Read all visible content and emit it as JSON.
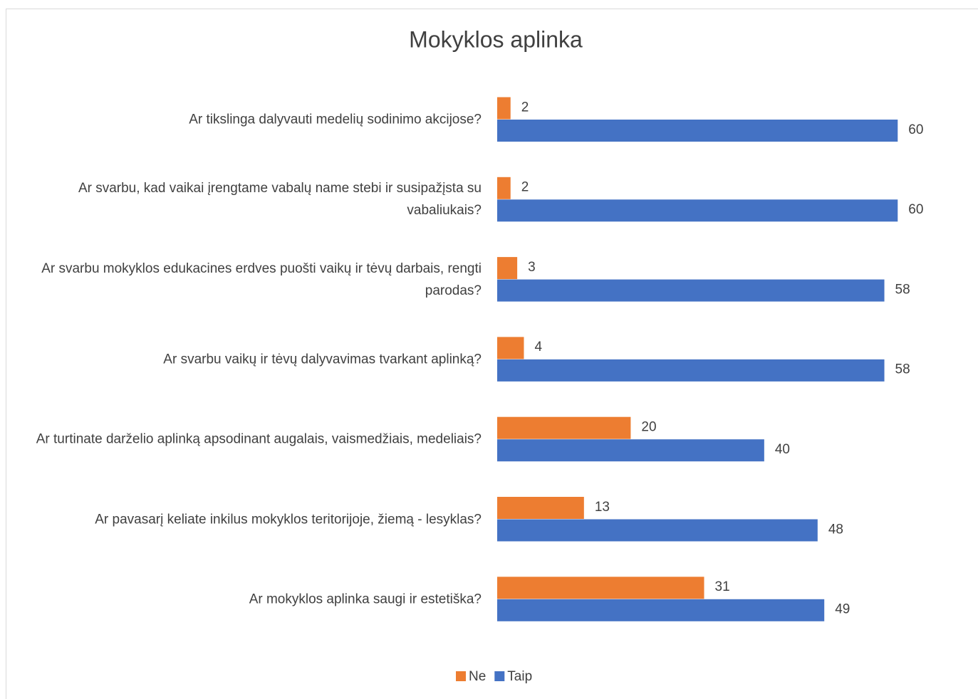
{
  "chart_data": {
    "type": "bar",
    "orientation": "horizontal",
    "title": "Mokyklos aplinka",
    "categories": [
      "Ar tikslinga dalyvauti medelių sodinimo akcijose?",
      "Ar svarbu, kad vaikai įrengtame vabalų name stebi ir susipažįsta su vabaliukais?",
      "Ar svarbu mokyklos edukacines erdves puošti vaikų ir tėvų darbais, rengti parodas?",
      "Ar svarbu vaikų ir tėvų dalyvavimas tvarkant aplinką?",
      "Ar turtinate darželio aplinką apsodinant augalais, vaismedžiais, medeliais?",
      "Ar pavasarį keliate inkilus mokyklos teritorijoje, žiemą - lesyklas?",
      "Ar mokyklos aplinka saugi ir estetiška?"
    ],
    "series": [
      {
        "name": "Ne",
        "color": "#ed7d31",
        "values": [
          2,
          2,
          3,
          4,
          20,
          13,
          31
        ]
      },
      {
        "name": "Taip",
        "color": "#4472c4",
        "values": [
          60,
          60,
          58,
          58,
          40,
          48,
          49
        ]
      }
    ],
    "xlim": [
      0,
      70
    ],
    "legend": "bottom"
  }
}
